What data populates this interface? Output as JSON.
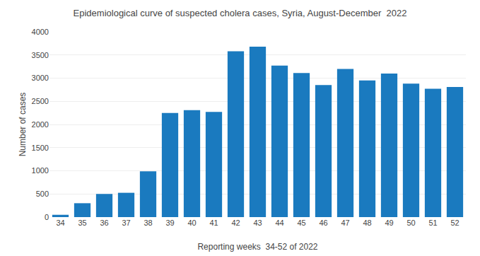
{
  "chart_data": {
    "type": "bar",
    "title": "Epidemiological curve of suspected cholera cases, Syria, August-December  2022",
    "xlabel": "Reporting weeks  34-52 of 2022",
    "ylabel": "Number of cases",
    "categories": [
      "34",
      "35",
      "36",
      "37",
      "38",
      "39",
      "40",
      "41",
      "42",
      "43",
      "44",
      "45",
      "46",
      "47",
      "48",
      "49",
      "50",
      "51",
      "52"
    ],
    "values": [
      50,
      300,
      500,
      525,
      990,
      2250,
      2310,
      2270,
      3580,
      3680,
      3270,
      3110,
      2850,
      3200,
      2950,
      3100,
      2880,
      2770,
      2810
    ],
    "color": "#1a7abf",
    "ylim": [
      0,
      4000
    ],
    "yticks": [
      0,
      500,
      1000,
      1500,
      2000,
      2500,
      3000,
      3500,
      4000
    ],
    "grid": true
  }
}
